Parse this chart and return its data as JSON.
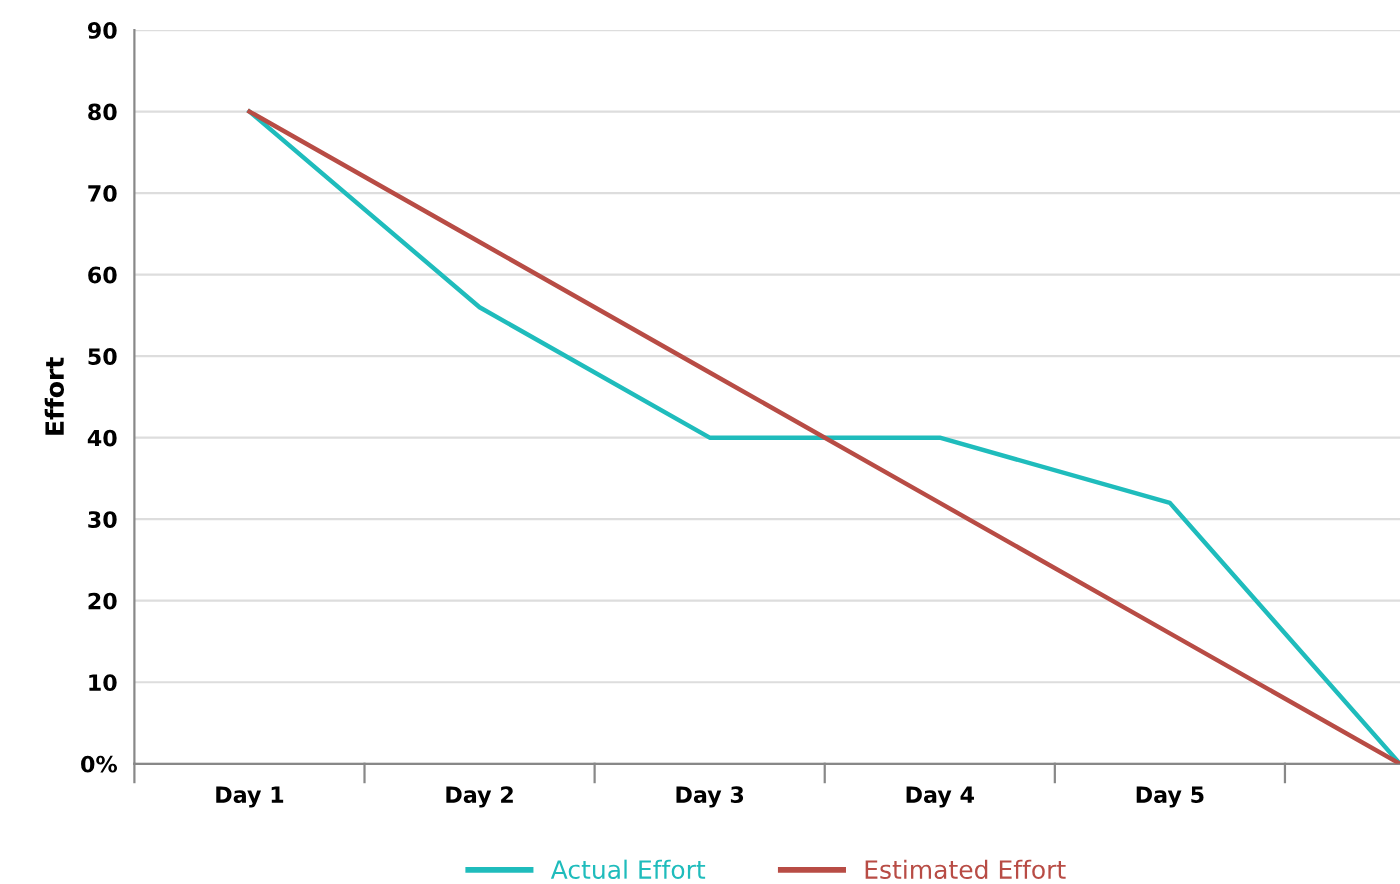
{
  "chart_data": {
    "type": "line",
    "ylabel": "Effort",
    "categories": [
      "Day 1",
      "Day 2",
      "Day 3",
      "Day 4",
      "Day 5",
      null
    ],
    "series": [
      {
        "name": "Actual Effort",
        "color": "#1fbcbc",
        "values": [
          80,
          56,
          40,
          40,
          32,
          0
        ]
      },
      {
        "name": "Estimated Effort",
        "color": "#b84c45",
        "values": [
          80,
          64,
          48,
          32,
          16,
          0
        ]
      }
    ],
    "ylim": [
      0,
      90
    ],
    "yticks": [
      {
        "value": 0,
        "label": "0%"
      },
      10,
      20,
      30,
      40,
      50,
      60,
      70,
      80,
      90
    ],
    "grid": "y",
    "legend": "bottom",
    "marker": "none",
    "line_style": "solid"
  }
}
